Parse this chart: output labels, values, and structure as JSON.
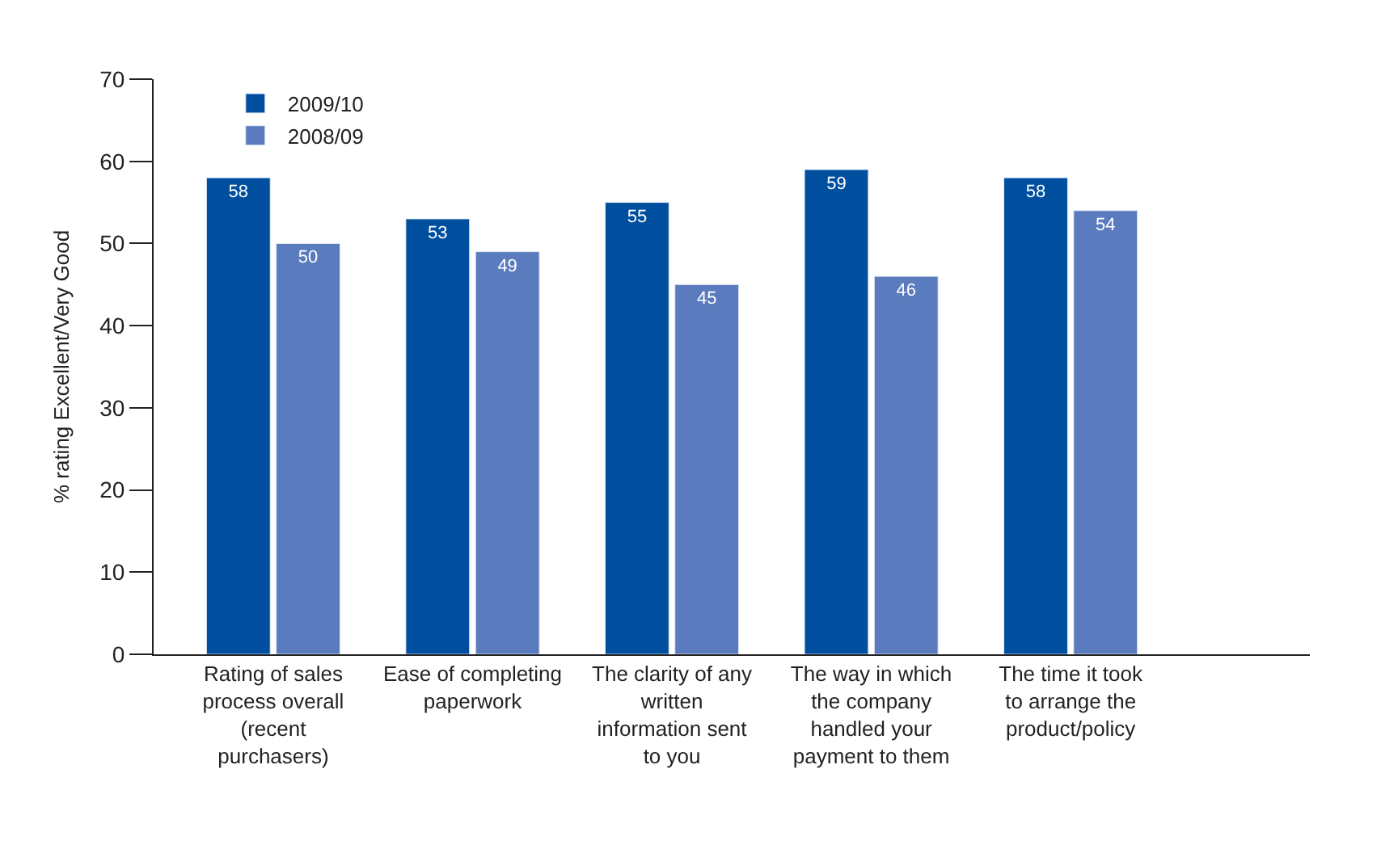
{
  "chart_data": {
    "type": "bar",
    "ylabel": "% rating Excellent/Very Good",
    "categories": [
      "Rating of sales process overall (recent purchasers)",
      "Ease of completing paperwork",
      "The clarity of any written information sent to you",
      "The way in which the company handled your payment to them",
      "The time it took to arrange the product/policy"
    ],
    "series": [
      {
        "name": "2009/10",
        "color": "#004f9f",
        "values": [
          58,
          53,
          55,
          59,
          58
        ]
      },
      {
        "name": "2008/09",
        "color": "#5b7bbf",
        "values": [
          50,
          49,
          45,
          46,
          54
        ]
      }
    ],
    "ylim": [
      0,
      70
    ],
    "yticks": [
      0,
      10,
      20,
      30,
      40,
      50,
      60,
      70
    ],
    "legend": "top left",
    "data_labels": true
  }
}
